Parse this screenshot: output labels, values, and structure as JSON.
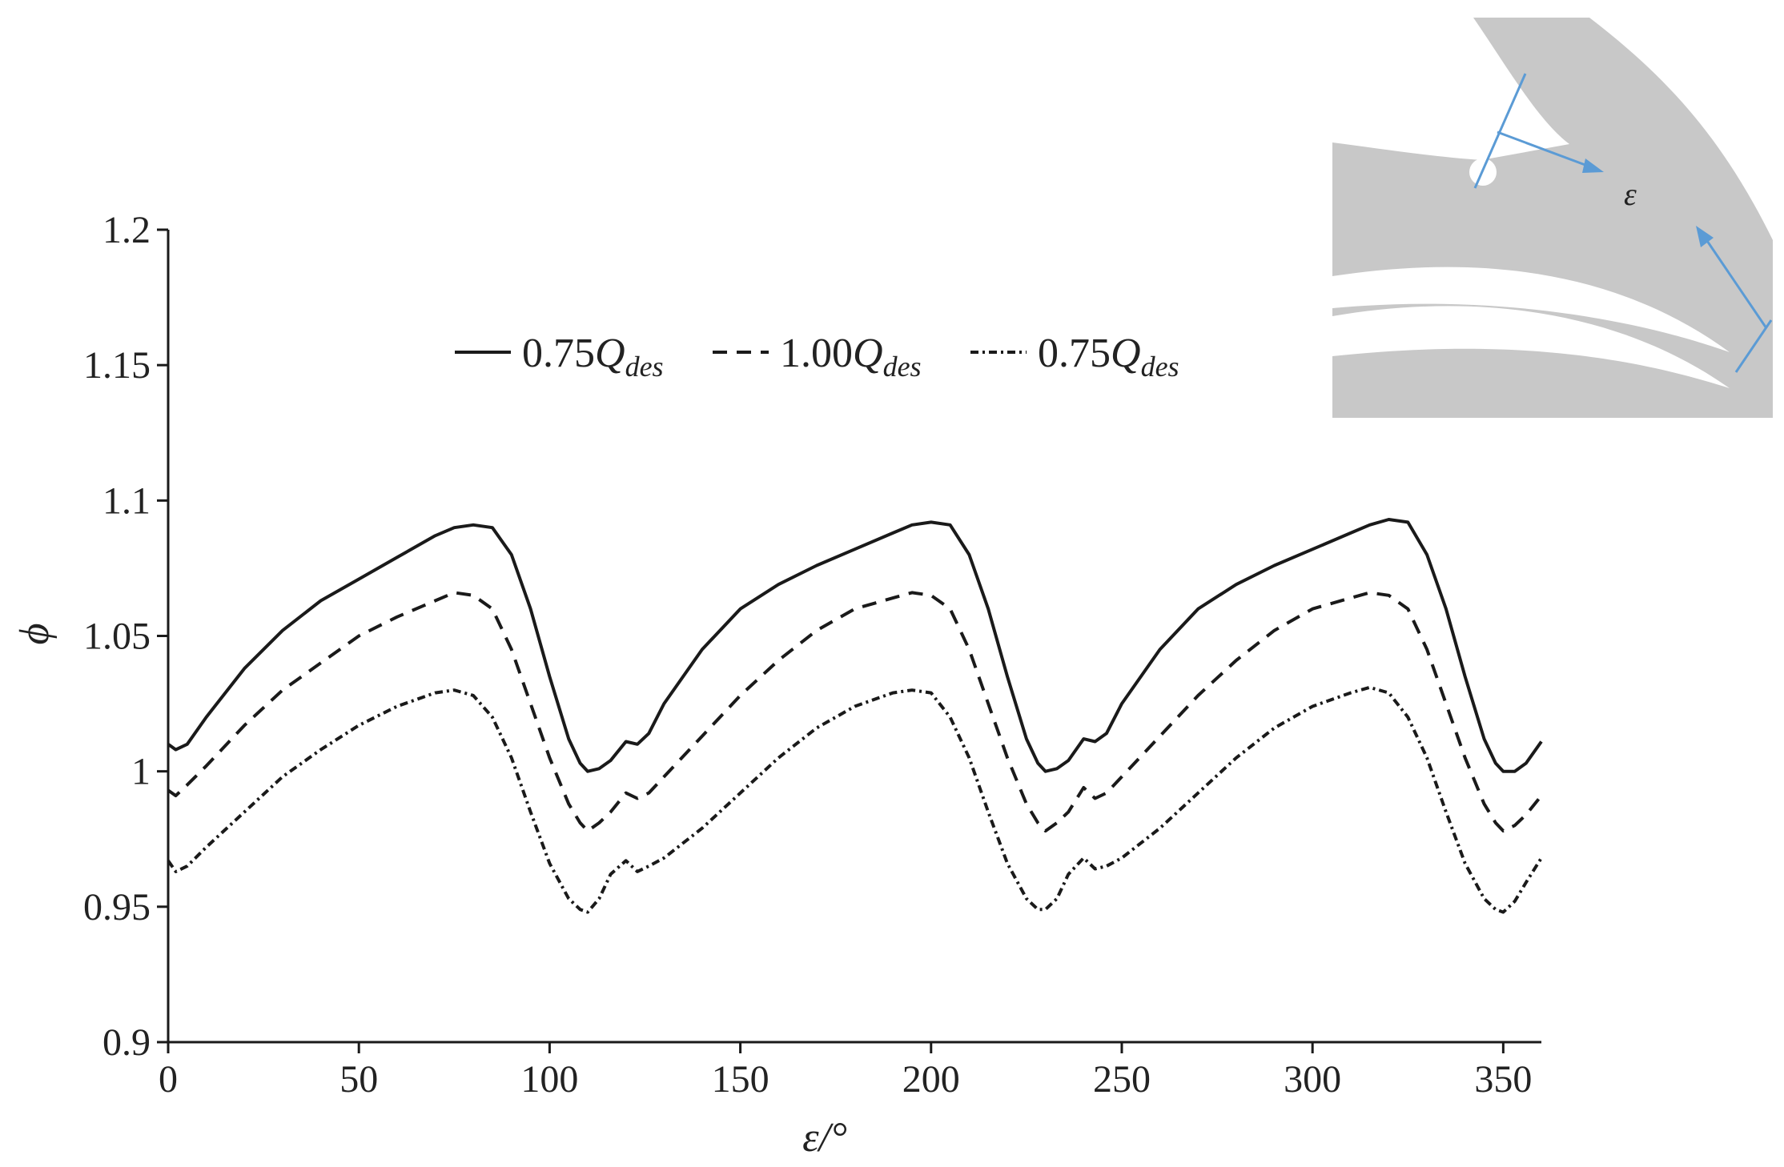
{
  "chart_data": {
    "type": "line",
    "xlabel": "ε/°",
    "ylabel": "ϕ",
    "xlim": [
      0,
      360
    ],
    "ylim": [
      0.9,
      1.2
    ],
    "x_ticks": [
      0,
      50,
      100,
      150,
      200,
      250,
      300,
      350
    ],
    "y_ticks": [
      0.9,
      0.95,
      1.0,
      1.05,
      1.1,
      1.15,
      1.2
    ],
    "x_tick_labels": [
      "0",
      "50",
      "100",
      "150",
      "200",
      "250",
      "300",
      "350"
    ],
    "y_tick_labels": [
      "0.9",
      "0.95",
      "1",
      "1.05",
      "1.1",
      "1.15",
      "1.2"
    ],
    "grid": false,
    "legend_position": "top-center",
    "series": [
      {
        "name": "0.75Q_des",
        "legend_prefix": "0.75",
        "legend_main": "Q",
        "legend_sub": "des",
        "style": "solid",
        "color": "#1a1a1a",
        "x": [
          0,
          2,
          5,
          10,
          20,
          30,
          40,
          50,
          60,
          70,
          75,
          80,
          85,
          90,
          95,
          100,
          105,
          108,
          110,
          113,
          116,
          120,
          123,
          126,
          130,
          140,
          150,
          160,
          170,
          180,
          190,
          195,
          200,
          205,
          210,
          215,
          220,
          225,
          228,
          230,
          233,
          236,
          240,
          243,
          246,
          250,
          260,
          270,
          280,
          290,
          300,
          310,
          315,
          320,
          325,
          330,
          335,
          340,
          345,
          348,
          350,
          353,
          356,
          360
        ],
        "y": [
          1.01,
          1.008,
          1.01,
          1.02,
          1.038,
          1.052,
          1.063,
          1.071,
          1.079,
          1.087,
          1.09,
          1.091,
          1.09,
          1.08,
          1.06,
          1.035,
          1.012,
          1.003,
          1.0,
          1.001,
          1.004,
          1.011,
          1.01,
          1.014,
          1.025,
          1.045,
          1.06,
          1.069,
          1.076,
          1.082,
          1.088,
          1.091,
          1.092,
          1.091,
          1.08,
          1.06,
          1.035,
          1.012,
          1.003,
          1.0,
          1.001,
          1.004,
          1.012,
          1.011,
          1.014,
          1.025,
          1.045,
          1.06,
          1.069,
          1.076,
          1.082,
          1.088,
          1.091,
          1.093,
          1.092,
          1.08,
          1.06,
          1.035,
          1.012,
          1.003,
          1.0,
          1.0,
          1.003,
          1.011
        ]
      },
      {
        "name": "1.00Q_des",
        "legend_prefix": "1.00",
        "legend_main": "Q",
        "legend_sub": "des",
        "style": "dashed",
        "color": "#1a1a1a",
        "x": [
          0,
          2,
          5,
          10,
          20,
          30,
          40,
          50,
          60,
          70,
          75,
          80,
          85,
          90,
          95,
          100,
          105,
          108,
          110,
          113,
          116,
          120,
          123,
          126,
          130,
          140,
          150,
          160,
          170,
          180,
          190,
          195,
          200,
          205,
          210,
          215,
          220,
          225,
          228,
          230,
          233,
          236,
          240,
          243,
          246,
          250,
          260,
          270,
          280,
          290,
          300,
          310,
          315,
          320,
          325,
          330,
          335,
          340,
          345,
          348,
          350,
          353,
          356,
          360
        ],
        "y": [
          0.993,
          0.991,
          0.995,
          1.002,
          1.017,
          1.03,
          1.04,
          1.05,
          1.057,
          1.063,
          1.066,
          1.065,
          1.06,
          1.045,
          1.025,
          1.005,
          0.988,
          0.981,
          0.978,
          0.981,
          0.985,
          0.992,
          0.99,
          0.992,
          0.998,
          1.013,
          1.028,
          1.041,
          1.052,
          1.06,
          1.064,
          1.066,
          1.065,
          1.06,
          1.045,
          1.025,
          1.005,
          0.988,
          0.981,
          0.978,
          0.981,
          0.985,
          0.994,
          0.99,
          0.992,
          0.998,
          1.013,
          1.028,
          1.041,
          1.052,
          1.06,
          1.064,
          1.066,
          1.065,
          1.06,
          1.045,
          1.025,
          1.005,
          0.988,
          0.981,
          0.978,
          0.98,
          0.984,
          0.991
        ]
      },
      {
        "name": "0.75Q_des",
        "legend_prefix": "0.75",
        "legend_main": "Q",
        "legend_sub": "des",
        "style": "dashdot",
        "color": "#1a1a1a",
        "x": [
          0,
          2,
          5,
          10,
          20,
          30,
          40,
          50,
          60,
          70,
          75,
          80,
          85,
          90,
          95,
          100,
          105,
          108,
          110,
          113,
          116,
          120,
          123,
          126,
          130,
          140,
          150,
          160,
          170,
          180,
          190,
          195,
          200,
          205,
          210,
          215,
          220,
          225,
          228,
          230,
          233,
          236,
          240,
          243,
          246,
          250,
          260,
          270,
          280,
          290,
          300,
          310,
          315,
          320,
          325,
          330,
          335,
          340,
          345,
          348,
          350,
          353,
          356,
          360
        ],
        "y": [
          0.967,
          0.963,
          0.965,
          0.972,
          0.985,
          0.998,
          1.008,
          1.017,
          1.024,
          1.029,
          1.03,
          1.028,
          1.02,
          1.005,
          0.985,
          0.966,
          0.953,
          0.949,
          0.948,
          0.953,
          0.962,
          0.967,
          0.963,
          0.965,
          0.968,
          0.979,
          0.992,
          1.005,
          1.016,
          1.024,
          1.029,
          1.03,
          1.029,
          1.02,
          1.005,
          0.985,
          0.966,
          0.953,
          0.949,
          0.949,
          0.953,
          0.962,
          0.968,
          0.964,
          0.965,
          0.968,
          0.979,
          0.992,
          1.005,
          1.016,
          1.024,
          1.029,
          1.031,
          1.029,
          1.02,
          1.005,
          0.985,
          0.966,
          0.953,
          0.949,
          0.948,
          0.952,
          0.959,
          0.968
        ]
      }
    ]
  },
  "inset": {
    "label": "ε",
    "background_color": "#c8c8c8",
    "arrow_color": "#5b9bd5"
  }
}
